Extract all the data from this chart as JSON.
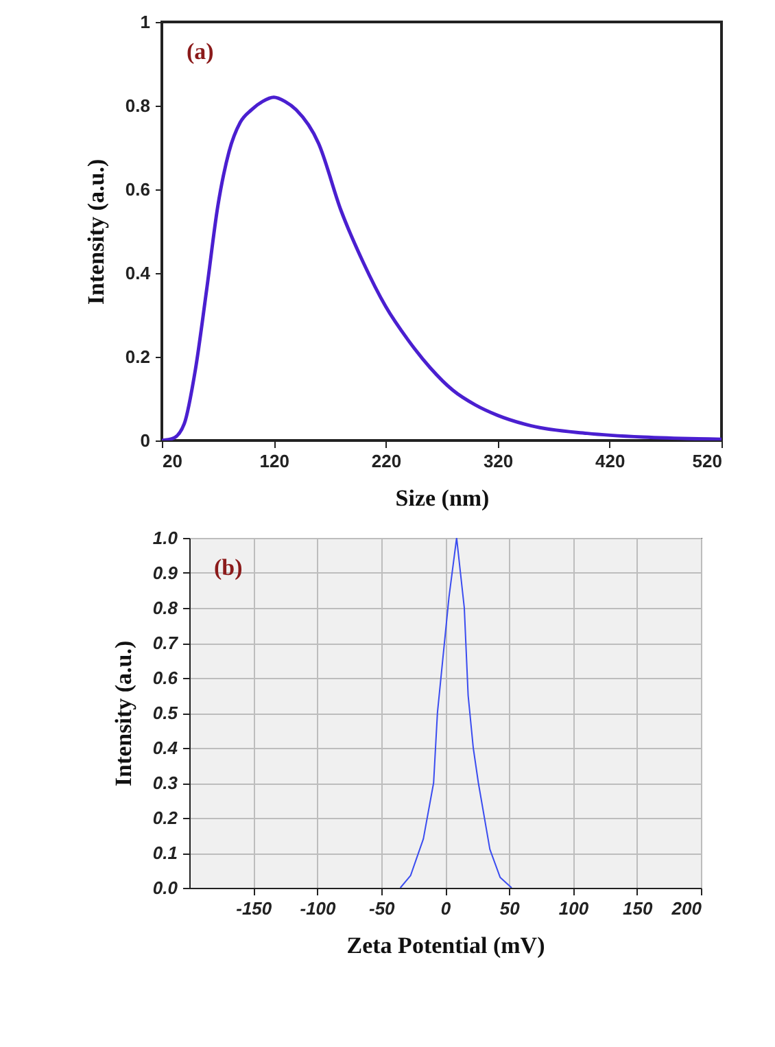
{
  "chart_data": [
    {
      "type": "line",
      "xlabel": "Size (nm)",
      "ylabel": "Intensity (a.u.)",
      "annotations": [
        "(a)"
      ],
      "xlim": [
        20,
        520
      ],
      "xticks": [
        20,
        120,
        220,
        320,
        420,
        520
      ],
      "ylim": [
        0,
        1
      ],
      "yticks": [
        0,
        0.2,
        0.4,
        0.6,
        0.8,
        1
      ],
      "grid": false,
      "series": [
        {
          "color": "#4a1fd0",
          "x": [
            20,
            30,
            40,
            50,
            60,
            70,
            80,
            90,
            100,
            110,
            120,
            130,
            140,
            160,
            180,
            200,
            220,
            240,
            260,
            280,
            300,
            320,
            350,
            400,
            450,
            520
          ],
          "values": [
            0,
            0.005,
            0.04,
            0.17,
            0.36,
            0.56,
            0.69,
            0.76,
            0.79,
            0.81,
            0.82,
            0.81,
            0.79,
            0.71,
            0.55,
            0.425,
            0.32,
            0.24,
            0.173,
            0.12,
            0.085,
            0.06,
            0.035,
            0.017,
            0.008,
            0.003
          ]
        }
      ]
    },
    {
      "type": "line",
      "xlabel": "Zeta Potential (mV)",
      "ylabel": "Intensity (a.u.)",
      "annotations": [
        "(b)"
      ],
      "xlim": [
        -200,
        200
      ],
      "xticks": [
        -150,
        -100,
        -50,
        0,
        50,
        100,
        150,
        200
      ],
      "ylim": [
        0,
        1
      ],
      "yticks": [
        {
          "value": 0,
          "label": "0.0"
        },
        0.1,
        0.2,
        0.3,
        0.4,
        0.5,
        0.6,
        0.7,
        0.8,
        0.9,
        {
          "value": 1,
          "label": "1.0"
        }
      ],
      "grid": true,
      "series": [
        {
          "color": "#3a4cf0",
          "x": [
            -35,
            -27,
            -17,
            -9,
            -6,
            0,
            3,
            9,
            15,
            18,
            22,
            26,
            35,
            43,
            52
          ],
          "values": [
            0,
            0.035,
            0.14,
            0.3,
            0.5,
            0.72,
            0.83,
            1.0,
            0.8,
            0.55,
            0.4,
            0.3,
            0.11,
            0.03,
            0
          ]
        }
      ]
    }
  ]
}
